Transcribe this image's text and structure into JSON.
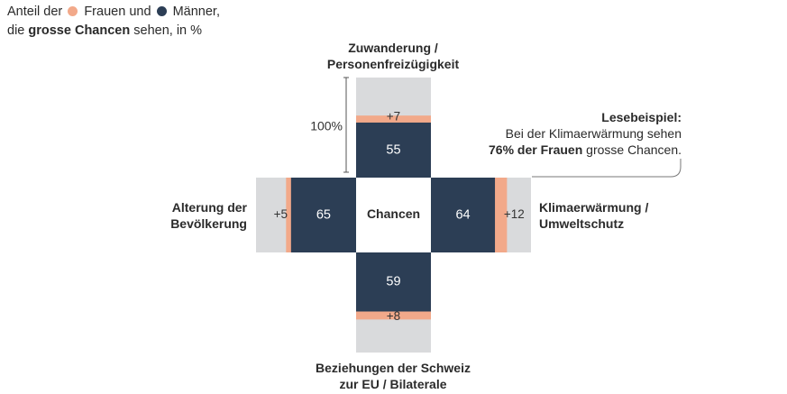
{
  "legend": {
    "prefix": "Anteil der",
    "women": "Frauen",
    "connector": "und",
    "men": "Männer,",
    "line2_pre": "die",
    "line2_bold": "grosse Chancen",
    "line2_post": "sehen, in %"
  },
  "scale_label": "100%",
  "center_label": "Chancen",
  "note": {
    "title": "Lesebeispiel:",
    "line1": "Bei der Klimaerwärmung sehen",
    "line2_bold": "76% der Frauen",
    "line2_post": "grosse Chancen."
  },
  "colors": {
    "women": "#f2a98a",
    "men": "#2c3e55",
    "track": "#d9dadc",
    "text_light": "#ffffff"
  },
  "chart_data": {
    "type": "bar",
    "layout": "cross",
    "max": 100,
    "series": [
      {
        "name": "Frauen",
        "color": "#f2a98a"
      },
      {
        "name": "Männer",
        "color": "#2c3e55"
      }
    ],
    "categories": [
      {
        "dir": "top",
        "label": [
          "Zuwanderung /",
          "Personenfreizügigkeit"
        ],
        "men": 55,
        "women": 62,
        "diff_label": "+7"
      },
      {
        "dir": "right",
        "label": [
          "Klimaerwärmung /",
          "Umweltschutz"
        ],
        "men": 64,
        "women": 76,
        "diff_label": "+12"
      },
      {
        "dir": "bottom",
        "label": [
          "Beziehungen der Schweiz",
          "zur EU / Bilaterale"
        ],
        "men": 59,
        "women": 67,
        "diff_label": "+8"
      },
      {
        "dir": "left",
        "label": [
          "Alterung der",
          "Bevölkerung"
        ],
        "men": 65,
        "women": 70,
        "diff_label": "+5"
      }
    ]
  }
}
